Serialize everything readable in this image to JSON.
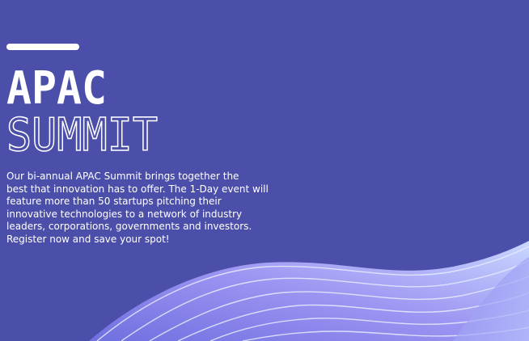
{
  "hero": {
    "title_line1": "APAC",
    "title_line2": "SUMMIT",
    "description_lines": [
      "Our bi-annual APAC Summit brings together the",
      "best that innovation has to offer. The 1-Day event will",
      "feature more than 50 startups pitching their",
      "innovative technologies to a network of industry",
      "leaders, corporations, governments and investors.",
      "Register now and save your spot!"
    ]
  }
}
